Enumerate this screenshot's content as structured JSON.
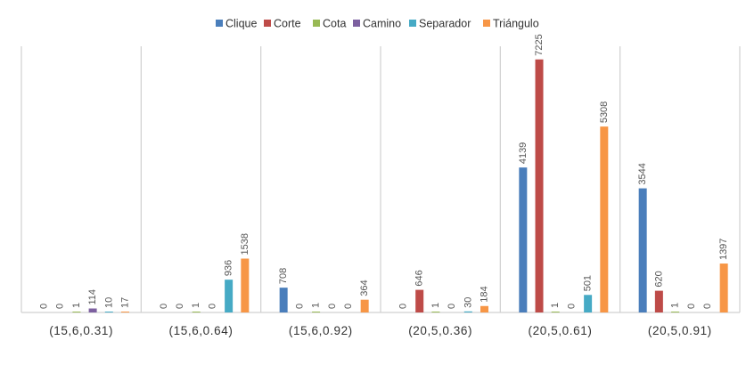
{
  "chart_data": {
    "type": "bar",
    "title": "",
    "xlabel": "",
    "ylabel": "",
    "ylim": [
      0,
      7600
    ],
    "grid": false,
    "legend_position": "top",
    "categories": [
      "(15,6,0.31)",
      "(15,6,0.64)",
      "(15,6,0.92)",
      "(20,5,0.36)",
      "(20,5,0.61)",
      "(20,5,0.91)"
    ],
    "series": [
      {
        "name": "Clique",
        "color": "#4a7ebb",
        "values": [
          0,
          0,
          708,
          0,
          4139,
          3544
        ]
      },
      {
        "name": "Corte",
        "color": "#be4b48",
        "values": [
          0,
          0,
          0,
          646,
          7225,
          620
        ]
      },
      {
        "name": "Cota",
        "color": "#98b954",
        "values": [
          1,
          1,
          1,
          1,
          1,
          1
        ]
      },
      {
        "name": "Camino",
        "color": "#7d60a0",
        "values": [
          114,
          0,
          0,
          0,
          0,
          0
        ]
      },
      {
        "name": "Separador",
        "color": "#46aac5",
        "values": [
          10,
          936,
          0,
          30,
          501,
          0
        ]
      },
      {
        "name": "Triángulo",
        "color": "#f79646",
        "values": [
          17,
          1538,
          364,
          184,
          5308,
          1397
        ]
      }
    ]
  }
}
